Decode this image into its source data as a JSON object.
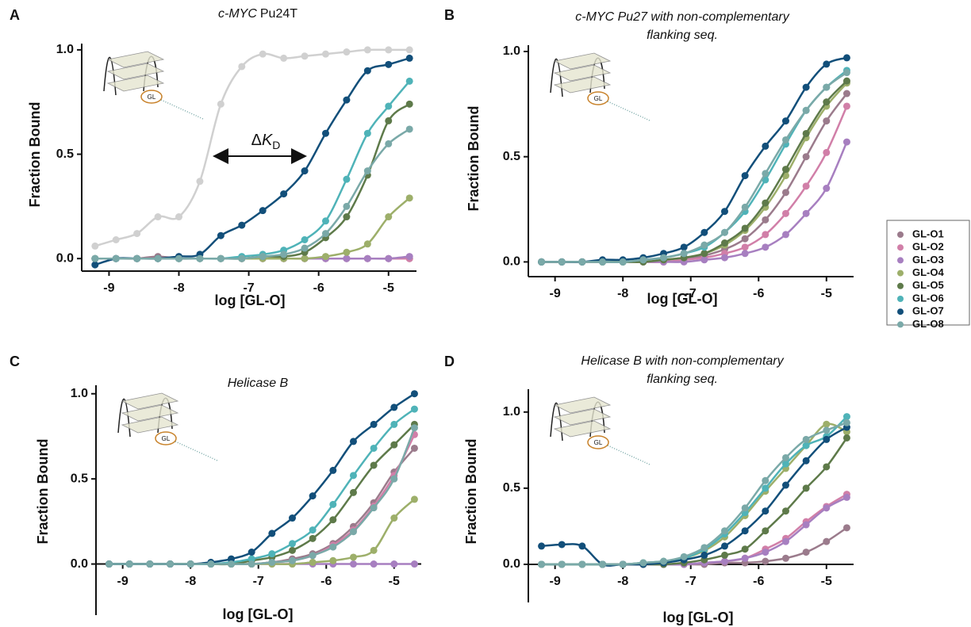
{
  "chart_data": [
    {
      "type": "scatter",
      "label": "A",
      "title_italic": "c-MYC",
      "title": "Pu24T",
      "icon_label": "GL",
      "annotation": [
        "Δ",
        "K",
        "D"
      ],
      "x_label": "log [GL-O]",
      "y_label": "Fraction Bound",
      "x": [
        -9.2,
        -8.9,
        -8.6,
        -8.3,
        -8.0,
        -7.7,
        -7.4,
        -7.1,
        -6.8,
        -6.5,
        -6.2,
        -5.9,
        -5.6,
        -5.3,
        -5.0,
        -4.7
      ],
      "xlim": [
        -9.3,
        -4.6
      ],
      "xticks": [
        -9,
        -8,
        -7,
        -6,
        -5
      ],
      "ylim": [
        -0.06,
        1.03
      ],
      "yticks": [
        {
          "value": 0,
          "label": "0.0"
        },
        {
          "value": 0.5,
          "label": "0.5"
        },
        {
          "value": 1,
          "label": "1.0"
        }
      ],
      "series": [
        {
          "name": "GL-O1",
          "color": "#9b7b8c",
          "values": [
            0,
            0,
            0,
            0.01,
            0,
            0,
            0,
            0,
            0,
            0,
            0,
            0,
            0,
            0,
            0,
            0
          ]
        },
        {
          "name": "GL-O2",
          "color": "#d17fa8",
          "values": [
            0,
            0,
            0,
            0,
            0,
            0,
            0,
            0,
            0,
            0,
            0,
            0,
            0,
            0,
            0,
            0
          ]
        },
        {
          "name": "GL-O3",
          "color": "#a77fc0",
          "values": [
            0,
            0,
            0,
            0,
            0,
            0,
            0,
            0,
            0,
            0,
            0,
            0,
            0,
            0,
            0,
            0.01
          ]
        },
        {
          "name": "GL-O4",
          "color": "#9daf6a",
          "values": [
            0,
            0,
            0,
            0,
            0,
            0,
            0,
            0,
            0,
            0,
            0,
            0.01,
            0.03,
            0.07,
            0.2,
            0.29
          ]
        },
        {
          "name": "GL-O5",
          "color": "#5e7a4a",
          "values": [
            0,
            0,
            0,
            0,
            0,
            0,
            0,
            0,
            0.01,
            0.01,
            0.03,
            0.1,
            0.2,
            0.4,
            0.66,
            0.74
          ]
        },
        {
          "name": "GL-O6",
          "color": "#4fb3b8",
          "values": [
            0,
            0,
            0,
            0,
            0,
            0,
            0,
            0.01,
            0.02,
            0.04,
            0.09,
            0.18,
            0.38,
            0.6,
            0.73,
            0.85
          ]
        },
        {
          "name": "GL-O7",
          "color": "#124f7a",
          "values": [
            -0.03,
            0,
            0,
            0,
            0.01,
            0.02,
            0.11,
            0.16,
            0.23,
            0.31,
            0.42,
            0.6,
            0.76,
            0.9,
            0.93,
            0.96
          ]
        },
        {
          "name": "GL-O8",
          "color": "#7aa9a8",
          "values": [
            0,
            0,
            0,
            0,
            0,
            0,
            0,
            0,
            0.01,
            0.02,
            0.05,
            0.12,
            0.25,
            0.42,
            0.55,
            0.62
          ]
        },
        {
          "color": "#d0d0d0",
          "values": [
            0.06,
            0.09,
            0.12,
            0.2,
            0.2,
            0.37,
            0.74,
            0.92,
            0.98,
            0.96,
            0.97,
            0.98,
            0.99,
            1.0,
            1.0,
            1.0
          ]
        }
      ]
    },
    {
      "type": "scatter",
      "label": "B",
      "title_lines": [
        "c-MYC Pu27 with non-complementary",
        "flanking seq."
      ],
      "icon_label": "GL",
      "x_label": "log [GL-O]",
      "y_label": "Fraction Bound",
      "x": [
        -9.2,
        -8.9,
        -8.6,
        -8.3,
        -8.0,
        -7.7,
        -7.4,
        -7.1,
        -6.8,
        -6.5,
        -6.2,
        -5.9,
        -5.6,
        -5.3,
        -5.0,
        -4.7
      ],
      "xlim": [
        -9.3,
        -4.6
      ],
      "xticks": [
        -9,
        -8,
        -7,
        -6,
        -5
      ],
      "ylim": [
        -0.07,
        1.03
      ],
      "yticks": [
        {
          "value": 0,
          "label": "0.0"
        },
        {
          "value": 0.5,
          "label": "0.5"
        },
        {
          "value": 1,
          "label": "1.0"
        }
      ],
      "series": [
        {
          "color": "#9b7b8c",
          "values": [
            0,
            0,
            0,
            0,
            0,
            0,
            0,
            0.01,
            0.03,
            0.06,
            0.11,
            0.2,
            0.33,
            0.5,
            0.67,
            0.8
          ]
        },
        {
          "color": "#d17fa8",
          "values": [
            0,
            0,
            0,
            0,
            0,
            0,
            0,
            0.01,
            0.02,
            0.04,
            0.07,
            0.13,
            0.23,
            0.36,
            0.52,
            0.74
          ]
        },
        {
          "color": "#a77fc0",
          "values": [
            0,
            0,
            0,
            0,
            0,
            0,
            0,
            0,
            0.01,
            0.02,
            0.04,
            0.07,
            0.13,
            0.23,
            0.35,
            0.57
          ]
        },
        {
          "color": "#9daf6a",
          "values": [
            0,
            0,
            0,
            0,
            0,
            0,
            0.01,
            0.02,
            0.04,
            0.08,
            0.15,
            0.26,
            0.41,
            0.59,
            0.74,
            0.85
          ]
        },
        {
          "color": "#5e7a4a",
          "values": [
            0,
            0,
            0,
            0,
            0,
            0,
            0.01,
            0.02,
            0.04,
            0.09,
            0.16,
            0.28,
            0.44,
            0.61,
            0.76,
            0.86
          ]
        },
        {
          "color": "#4fb3b8",
          "values": [
            0,
            0,
            0,
            0,
            0,
            0.01,
            0.02,
            0.04,
            0.07,
            0.14,
            0.24,
            0.39,
            0.56,
            0.72,
            0.83,
            0.91
          ]
        },
        {
          "color": "#124f7a",
          "values": [
            0,
            0,
            0,
            0.01,
            0.01,
            0.02,
            0.04,
            0.07,
            0.14,
            0.24,
            0.41,
            0.55,
            0.67,
            0.83,
            0.94,
            0.97
          ]
        },
        {
          "color": "#7aa9a8",
          "values": [
            0,
            0,
            0,
            0,
            0,
            0.01,
            0.02,
            0.04,
            0.08,
            0.14,
            0.26,
            0.42,
            0.58,
            0.72,
            0.83,
            0.9
          ]
        }
      ]
    },
    {
      "type": "scatter",
      "label": "C",
      "title_lines": [
        "Helicase B"
      ],
      "icon_label": "GL",
      "x_label": "log [GL-O]",
      "y_label": "Fraction Bound",
      "x": [
        -9.2,
        -8.9,
        -8.6,
        -8.3,
        -8.0,
        -7.7,
        -7.4,
        -7.1,
        -6.8,
        -6.5,
        -6.2,
        -5.9,
        -5.6,
        -5.3,
        -5.0,
        -4.7
      ],
      "xlim": [
        -9.3,
        -4.6
      ],
      "xticks": [
        -9,
        -8,
        -7,
        -6,
        -5
      ],
      "ylim": [
        -0.3,
        1.05
      ],
      "yticks": [
        {
          "value": 0,
          "label": "0.0"
        },
        {
          "value": 0.5,
          "label": "0.5"
        },
        {
          "value": 1,
          "label": "1.0"
        }
      ],
      "series": [
        {
          "color": "#9b7b8c",
          "values": [
            0,
            0,
            0,
            0,
            0,
            0,
            0,
            0,
            0.01,
            0.03,
            0.06,
            0.12,
            0.22,
            0.36,
            0.54,
            0.68
          ]
        },
        {
          "color": "#d17fa8",
          "values": [
            0,
            0,
            0,
            0,
            0,
            0,
            0,
            0,
            0.01,
            0.02,
            0.05,
            0.11,
            0.2,
            0.34,
            0.52,
            0.76
          ]
        },
        {
          "color": "#a77fc0",
          "values": [
            0,
            0,
            0,
            0,
            0,
            0,
            0,
            0,
            0,
            0,
            0,
            0,
            0,
            0,
            0,
            0
          ]
        },
        {
          "color": "#9daf6a",
          "values": [
            0,
            0,
            0,
            0,
            0,
            0,
            0,
            0,
            0,
            0,
            0.01,
            0.02,
            0.04,
            0.08,
            0.27,
            0.38
          ]
        },
        {
          "color": "#5e7a4a",
          "values": [
            0,
            0,
            0,
            0,
            0,
            0,
            0,
            0.02,
            0.04,
            0.08,
            0.15,
            0.26,
            0.42,
            0.58,
            0.7,
            0.82
          ]
        },
        {
          "color": "#4fb3b8",
          "values": [
            0,
            0,
            0,
            0,
            0,
            0,
            0.01,
            0.03,
            0.06,
            0.12,
            0.2,
            0.35,
            0.52,
            0.68,
            0.82,
            0.91
          ]
        },
        {
          "color": "#124f7a",
          "values": [
            0,
            0,
            0,
            0,
            0,
            0.01,
            0.03,
            0.07,
            0.18,
            0.27,
            0.4,
            0.55,
            0.72,
            0.82,
            0.92,
            1.0
          ]
        },
        {
          "color": "#7aa9a8",
          "values": [
            0,
            0,
            0,
            0,
            0,
            0,
            0,
            0,
            0.01,
            0.02,
            0.05,
            0.1,
            0.19,
            0.33,
            0.5,
            0.8
          ]
        }
      ]
    },
    {
      "type": "scatter",
      "label": "D",
      "title_lines": [
        "Helicase B with non-complementary",
        "flanking seq."
      ],
      "icon_label": "GL",
      "x_label": "log [GL-O]",
      "y_label": "Fraction Bound",
      "x": [
        -9.2,
        -8.9,
        -8.6,
        -8.3,
        -8.0,
        -7.7,
        -7.4,
        -7.1,
        -6.8,
        -6.5,
        -6.2,
        -5.9,
        -5.6,
        -5.3,
        -5.0,
        -4.7
      ],
      "xlim": [
        -9.3,
        -4.6
      ],
      "xticks": [
        -9,
        -8,
        -7,
        -6,
        -5
      ],
      "ylim": [
        -0.25,
        1.15
      ],
      "yticks": [
        {
          "value": 0,
          "label": "0.0"
        },
        {
          "value": 0.5,
          "label": "0.5"
        },
        {
          "value": 1,
          "label": "1.0"
        }
      ],
      "series": [
        {
          "color": "#9b7b8c",
          "values": [
            0,
            0,
            0,
            0,
            0,
            0,
            0,
            0,
            0,
            0.01,
            0.01,
            0.02,
            0.04,
            0.08,
            0.15,
            0.24
          ]
        },
        {
          "color": "#d17fa8",
          "values": [
            0,
            0,
            0,
            0,
            0,
            0,
            0,
            0,
            0.01,
            0.02,
            0.04,
            0.1,
            0.17,
            0.28,
            0.38,
            0.46
          ]
        },
        {
          "color": "#a77fc0",
          "values": [
            0,
            0,
            0,
            0,
            0,
            0,
            0,
            0,
            0.01,
            0.02,
            0.04,
            0.08,
            0.15,
            0.26,
            0.37,
            0.44
          ]
        },
        {
          "color": "#9daf6a",
          "values": [
            0,
            0,
            0,
            0,
            0,
            0.01,
            0.02,
            0.04,
            0.09,
            0.18,
            0.32,
            0.48,
            0.63,
            0.78,
            0.92,
            0.87
          ]
        },
        {
          "color": "#5e7a4a",
          "values": [
            0,
            0,
            0,
            0,
            0,
            0,
            0,
            0.01,
            0.03,
            0.06,
            0.1,
            0.22,
            0.35,
            0.5,
            0.64,
            0.83
          ]
        },
        {
          "color": "#4fb3b8",
          "values": [
            0,
            0,
            0,
            0,
            0,
            0.01,
            0.02,
            0.04,
            0.1,
            0.2,
            0.34,
            0.5,
            0.66,
            0.78,
            0.84,
            0.97
          ]
        },
        {
          "color": "#124f7a",
          "values": [
            0.12,
            0.13,
            0.12,
            0,
            0,
            0,
            0.01,
            0.03,
            0.06,
            0.12,
            0.22,
            0.35,
            0.52,
            0.68,
            0.82,
            0.9
          ]
        },
        {
          "color": "#7aa9a8",
          "values": [
            0,
            0,
            0,
            0,
            0,
            0.01,
            0.02,
            0.05,
            0.11,
            0.22,
            0.37,
            0.55,
            0.7,
            0.82,
            0.88,
            0.93
          ]
        }
      ]
    }
  ]
}
